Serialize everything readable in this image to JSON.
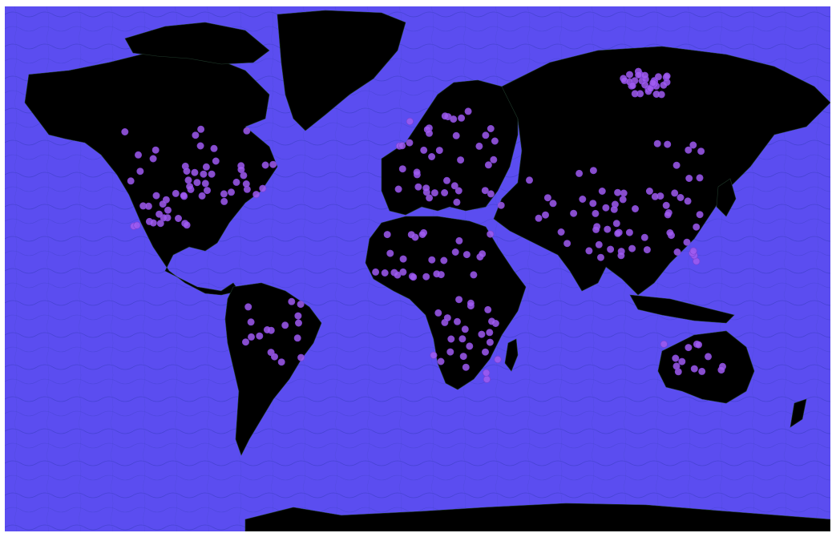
{
  "map": {
    "projection": "mercator",
    "colors": {
      "ocean": "#5b4df0",
      "land": "#000000",
      "bathymetry_lines": "#3f3fc8",
      "country_borders": "#1f3a2a",
      "marker_fill": "#a05cf0",
      "marker_stroke": "#7a3fd0"
    },
    "markers": {
      "description_visible": false,
      "north_america": 58,
      "south_america": 17,
      "europe": 40,
      "africa": 52,
      "asia": 96,
      "oceania": 13
    }
  }
}
